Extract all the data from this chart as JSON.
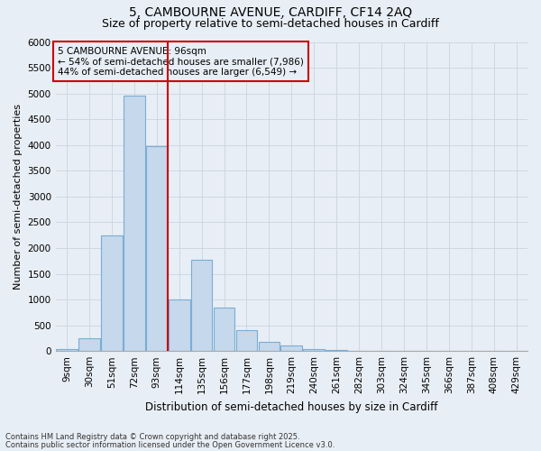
{
  "title_line1": "5, CAMBOURNE AVENUE, CARDIFF, CF14 2AQ",
  "title_line2": "Size of property relative to semi-detached houses in Cardiff",
  "xlabel": "Distribution of semi-detached houses by size in Cardiff",
  "ylabel": "Number of semi-detached properties",
  "categories": [
    "9sqm",
    "30sqm",
    "51sqm",
    "72sqm",
    "93sqm",
    "114sqm",
    "135sqm",
    "156sqm",
    "177sqm",
    "198sqm",
    "219sqm",
    "240sqm",
    "261sqm",
    "282sqm",
    "303sqm",
    "324sqm",
    "345sqm",
    "366sqm",
    "387sqm",
    "408sqm",
    "429sqm"
  ],
  "values": [
    30,
    250,
    2250,
    4950,
    3980,
    1000,
    1780,
    850,
    400,
    175,
    100,
    30,
    20,
    10,
    5,
    3,
    2,
    2,
    1,
    1,
    1
  ],
  "bar_color": "#c5d8ec",
  "bar_edge_color": "#7aadd4",
  "vline_color": "#cc0000",
  "vline_x": 4,
  "annotation_title": "5 CAMBOURNE AVENUE: 96sqm",
  "annotation_line1": "← 54% of semi-detached houses are smaller (7,986)",
  "annotation_line2": "44% of semi-detached houses are larger (6,549) →",
  "annotation_box_edge_color": "#cc0000",
  "ylim": [
    0,
    6000
  ],
  "yticks": [
    0,
    500,
    1000,
    1500,
    2000,
    2500,
    3000,
    3500,
    4000,
    4500,
    5000,
    5500,
    6000
  ],
  "footnote1": "Contains HM Land Registry data © Crown copyright and database right 2025.",
  "footnote2": "Contains public sector information licensed under the Open Government Licence v3.0.",
  "background_color": "#e8eef5",
  "grid_color": "#c8d4e0",
  "title_fontsize": 10,
  "subtitle_fontsize": 9,
  "axis_label_fontsize": 8,
  "tick_fontsize": 7.5,
  "annotation_fontsize": 7.5,
  "footnote_fontsize": 6
}
